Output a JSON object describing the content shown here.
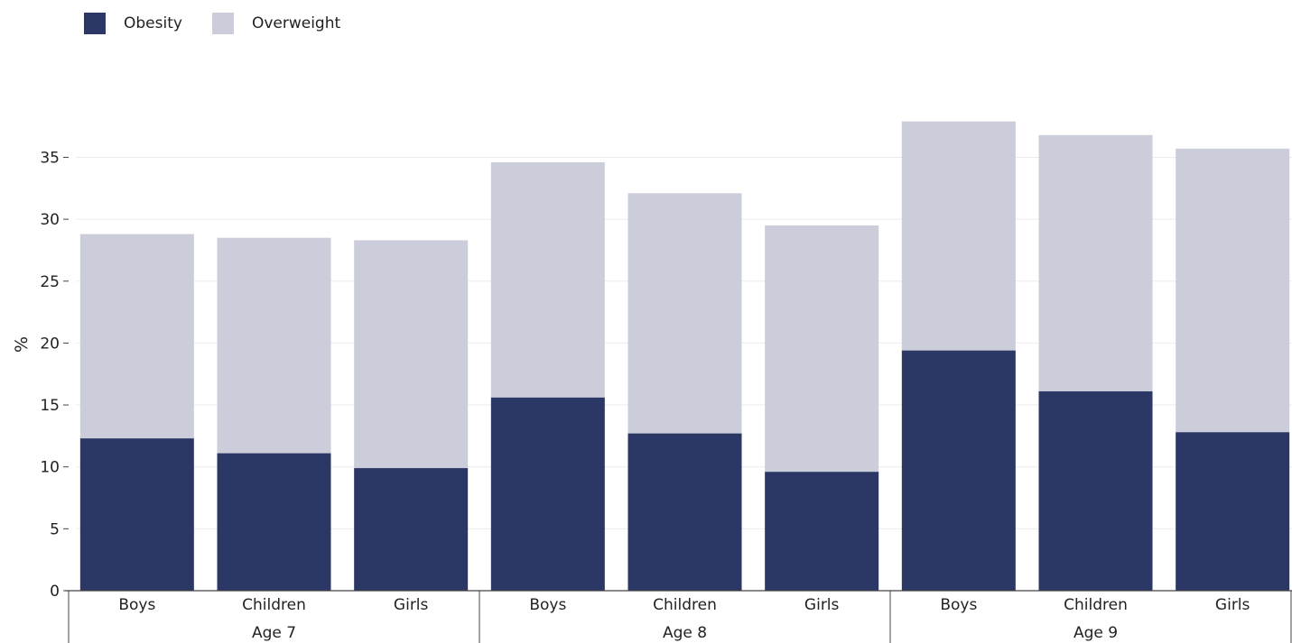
{
  "chart_data": {
    "type": "bar",
    "stacked": true,
    "ylabel": "%",
    "ylim": [
      0,
      35
    ],
    "yticks": [
      0,
      5,
      10,
      15,
      20,
      25,
      30,
      35
    ],
    "grid": true,
    "legend_position": "top-left",
    "groups": [
      {
        "label": "Age 7",
        "categories": [
          "Boys",
          "Children",
          "Girls"
        ],
        "obesity": [
          12.3,
          11.1,
          9.9
        ],
        "total": [
          28.8,
          28.5,
          28.3
        ]
      },
      {
        "label": "Age 8",
        "categories": [
          "Boys",
          "Children",
          "Girls"
        ],
        "obesity": [
          15.6,
          12.7,
          9.6
        ],
        "total": [
          34.6,
          32.1,
          29.5
        ]
      },
      {
        "label": "Age 9",
        "categories": [
          "Boys",
          "Children",
          "Girls"
        ],
        "obesity": [
          19.4,
          16.1,
          12.8
        ],
        "total": [
          37.9,
          36.8,
          35.7
        ]
      }
    ],
    "series": [
      {
        "name": "Obesity",
        "color": "#2b3764"
      },
      {
        "name": "Overweight",
        "color": "#cbcdda"
      }
    ]
  }
}
